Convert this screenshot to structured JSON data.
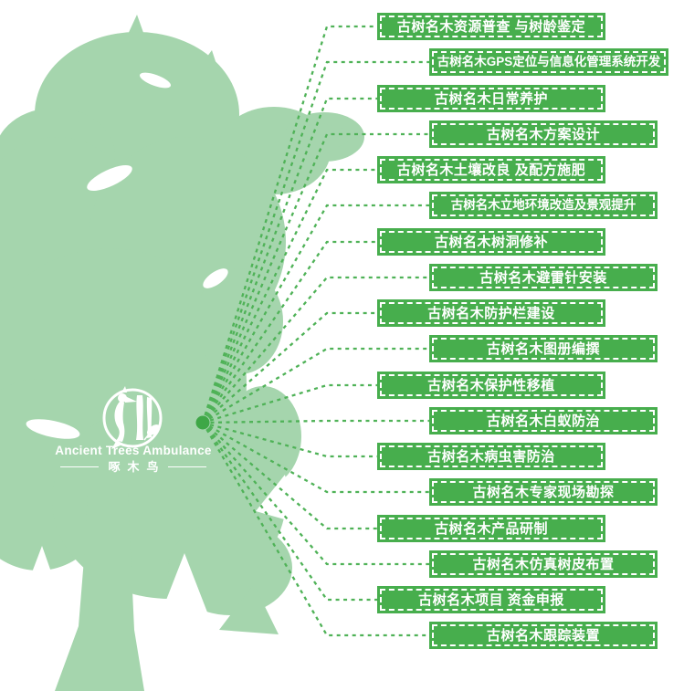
{
  "logo": {
    "title": "Ancient Trees Ambulance",
    "subtitle": "啄木鸟",
    "emblem_icon": "woodpecker-in-circle"
  },
  "services": [
    {
      "label": "古树名木资源普查 与树龄鉴定"
    },
    {
      "label": "古树名木GPS定位与信息化管理系统开发"
    },
    {
      "label": "古树名木日常养护"
    },
    {
      "label": "古树名木方案设计"
    },
    {
      "label": "古树名木土壤改良 及配方施肥"
    },
    {
      "label": "古树名木立地环境改造及景观提升"
    },
    {
      "label": "古树名木树洞修补"
    },
    {
      "label": "古树名木避雷针安装"
    },
    {
      "label": "古树名木防护栏建设"
    },
    {
      "label": "古树名木图册编撰"
    },
    {
      "label": "古树名木保护性移植"
    },
    {
      "label": "古树名木白蚁防治"
    },
    {
      "label": "古树名木病虫害防治"
    },
    {
      "label": "古树名木专家现场勘探"
    },
    {
      "label": "古树名木产品研制"
    },
    {
      "label": "古树名木仿真树皮布置"
    },
    {
      "label": "古树名木项目 资金申报"
    },
    {
      "label": "古树名木跟踪装置"
    }
  ],
  "colors": {
    "banner_green": "#47ae4d",
    "tree_green": "#a5d5ad",
    "connector_green": "#4fb257",
    "dot_green": "#3ea746",
    "text_white": "#ffffff"
  }
}
